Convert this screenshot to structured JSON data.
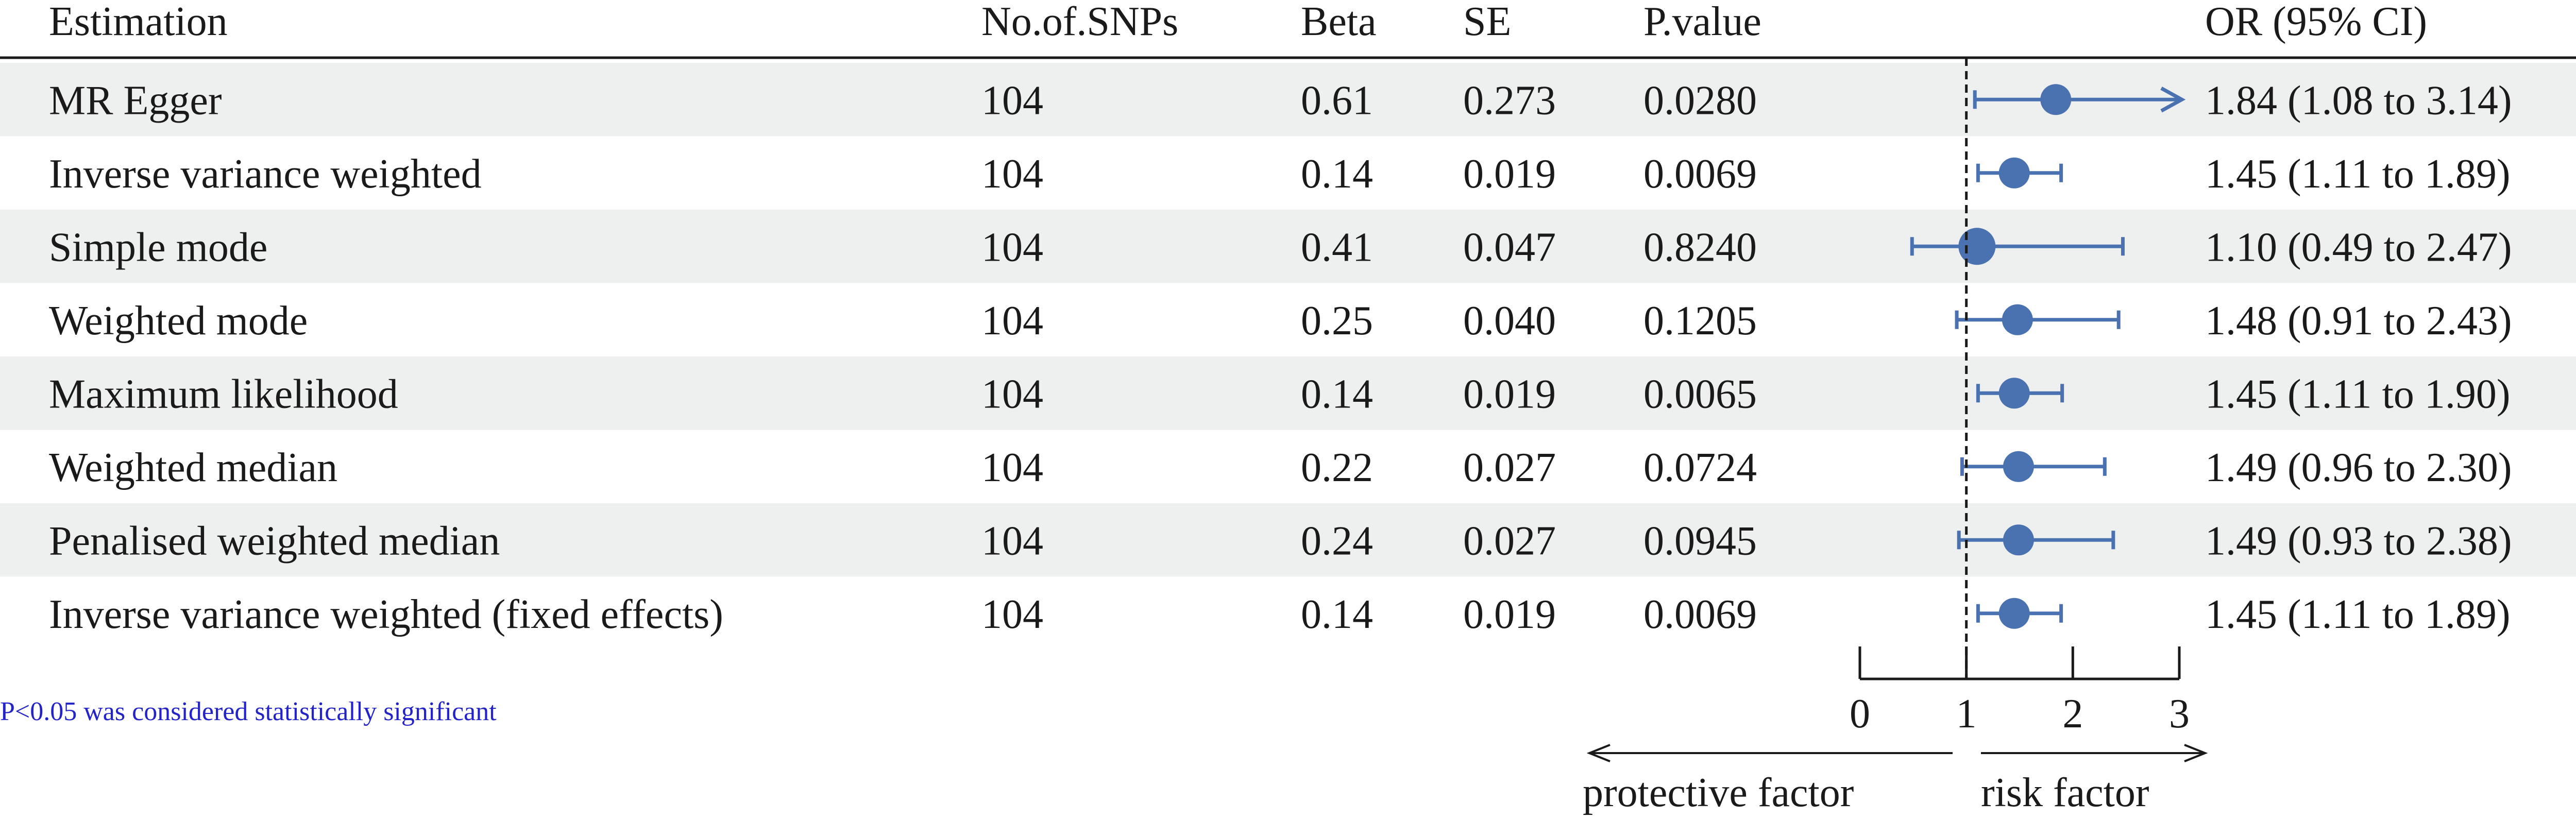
{
  "headers": {
    "estimation": "Estimation",
    "nsnps": "No.of.SNPs",
    "beta": "Beta",
    "se": "SE",
    "pvalue": "P.value",
    "or": "OR (95% CI)"
  },
  "footnote": "P<0.05 was considered statistically significant",
  "axis_labels": {
    "protective": "protective factor",
    "risk": "risk factor"
  },
  "colors": {
    "point": "#4a72b0",
    "stripe": "#edf0ef",
    "footnote": "#2323c8",
    "text": "#1a1a1a"
  },
  "chart_data": {
    "type": "forest",
    "x_ticks": [
      0,
      1,
      2,
      3
    ],
    "xlim": [
      0,
      3
    ],
    "reference_line": 1,
    "rows": [
      {
        "method": "MR Egger",
        "nsnp": "104",
        "beta": "0.61",
        "se": "0.273",
        "p": "0.0280",
        "or": 1.84,
        "lo": 1.08,
        "hi": 3.14,
        "or_text": "1.84 (1.08 to 3.14)",
        "arrow_right": true
      },
      {
        "method": "Inverse variance weighted",
        "nsnp": "104",
        "beta": "0.14",
        "se": "0.019",
        "p": "0.0069",
        "or": 1.45,
        "lo": 1.11,
        "hi": 1.89,
        "or_text": "1.45 (1.11 to 1.89)",
        "arrow_right": false
      },
      {
        "method": "Simple mode",
        "nsnp": "104",
        "beta": "0.41",
        "se": "0.047",
        "p": "0.8240",
        "or": 1.1,
        "lo": 0.49,
        "hi": 2.47,
        "or_text": "1.10 (0.49 to 2.47)",
        "arrow_right": false
      },
      {
        "method": "Weighted mode",
        "nsnp": "104",
        "beta": "0.25",
        "se": "0.040",
        "p": "0.1205",
        "or": 1.48,
        "lo": 0.91,
        "hi": 2.43,
        "or_text": "1.48 (0.91 to 2.43)",
        "arrow_right": false
      },
      {
        "method": "Maximum likelihood",
        "nsnp": "104",
        "beta": "0.14",
        "se": "0.019",
        "p": "0.0065",
        "or": 1.45,
        "lo": 1.11,
        "hi": 1.9,
        "or_text": "1.45 (1.11 to 1.90)",
        "arrow_right": false
      },
      {
        "method": "Weighted median",
        "nsnp": "104",
        "beta": "0.22",
        "se": "0.027",
        "p": "0.0724",
        "or": 1.49,
        "lo": 0.96,
        "hi": 2.3,
        "or_text": "1.49 (0.96 to 2.30)",
        "arrow_right": false
      },
      {
        "method": "Penalised weighted median",
        "nsnp": "104",
        "beta": "0.24",
        "se": "0.027",
        "p": "0.0945",
        "or": 1.49,
        "lo": 0.93,
        "hi": 2.38,
        "or_text": "1.49 (0.93 to 2.38)",
        "arrow_right": false
      },
      {
        "method": "Inverse variance weighted (fixed effects)",
        "nsnp": "104",
        "beta": "0.14",
        "se": "0.019",
        "p": "0.0069",
        "or": 1.45,
        "lo": 1.11,
        "hi": 1.89,
        "or_text": "1.45 (1.11 to 1.89)",
        "arrow_right": false
      }
    ]
  }
}
